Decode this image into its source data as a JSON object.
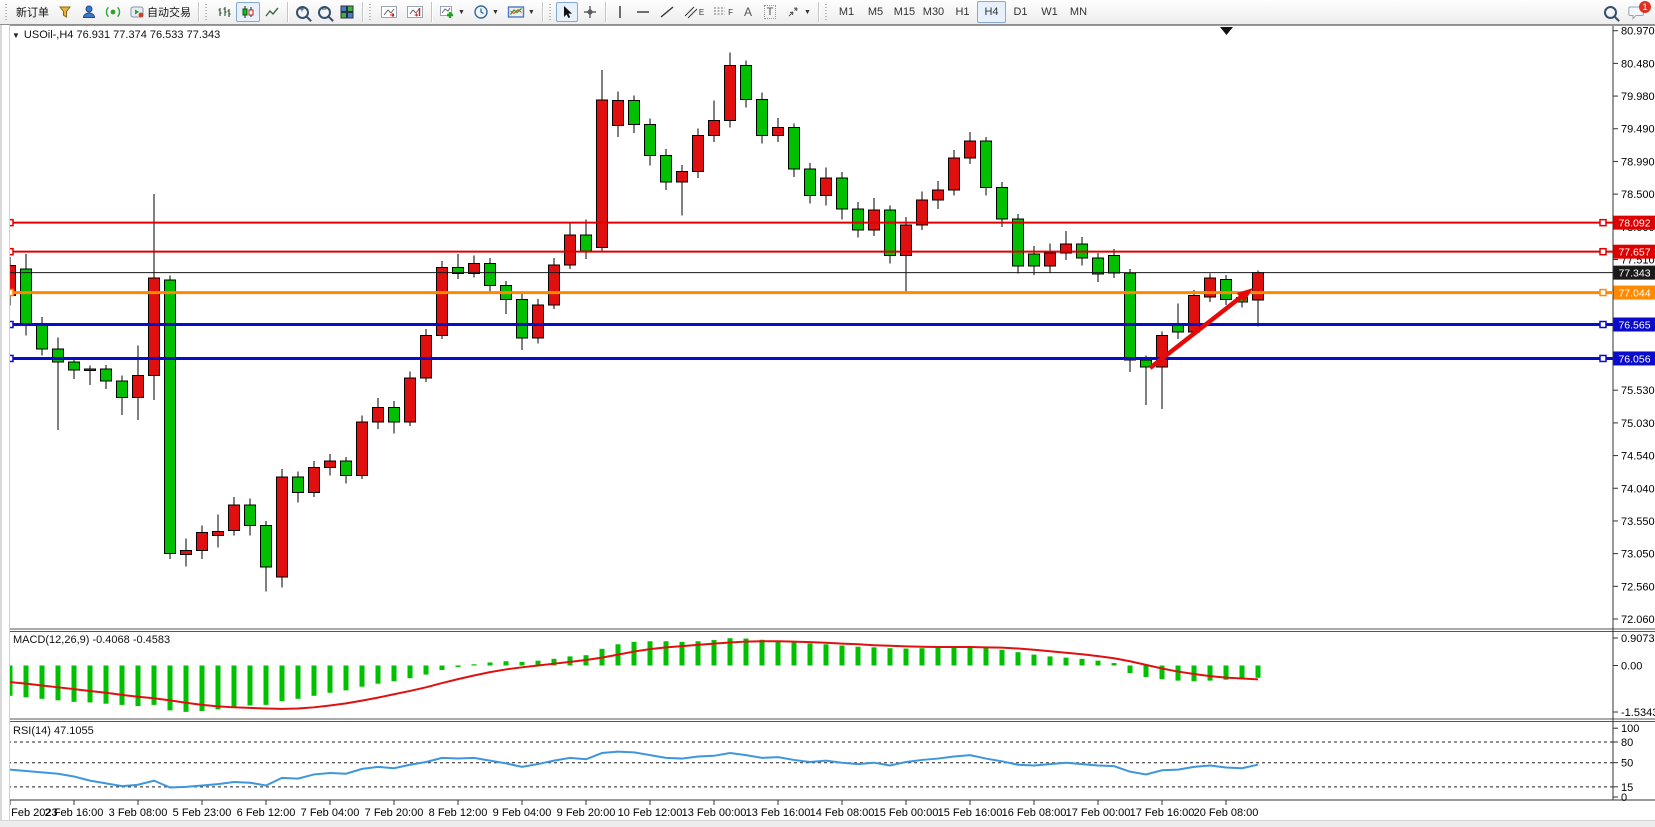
{
  "toolbar": {
    "new_order": "新订单",
    "auto_trading": "自动交易",
    "text_tool": "A",
    "label_tool": "T",
    "channel_letter": "E",
    "fibo_letter": "F",
    "timeframes": [
      "M1",
      "M5",
      "M15",
      "M30",
      "H1",
      "H4",
      "D1",
      "W1",
      "MN"
    ],
    "active_timeframe": "H4",
    "chat_badge": "1",
    "icons": [
      "funnel-icon",
      "user-icon",
      "signal-icon",
      "autotrade-icon",
      "bar-chart-icon",
      "candlestick-icon",
      "line-chart-icon",
      "zoom-in-icon",
      "zoom-out-icon",
      "tile-windows-icon",
      "auto-scroll-icon",
      "chart-shift-icon",
      "add-indicator-icon",
      "clock-icon",
      "template-icon",
      "cursor-icon",
      "crosshair-icon",
      "vertical-line-icon",
      "horizontal-line-icon",
      "trendline-icon",
      "channel-icon",
      "fibonacci-icon",
      "arrows-icon",
      "search-icon",
      "chat-icon"
    ]
  },
  "chart": {
    "title": "USOil-,H4  76.931 77.374 76.533 77.343",
    "symbol": "USOil",
    "period": "H4"
  },
  "chart_data": {
    "type": "candlestick",
    "symbol": "USOil",
    "timeframe": "H4",
    "up_color": "#e01010",
    "down_color": "#00c000",
    "note_color_convention": "red = bullish, green = bearish",
    "last_bar": {
      "open": 76.931,
      "high": 77.374,
      "low": 76.533,
      "close": 77.343
    },
    "price_axis": [
      "80.970",
      "80.480",
      "79.980",
      "79.490",
      "78.990",
      "78.500",
      "78.000",
      "77.510",
      "77.020",
      "76.520",
      "76.030",
      "75.530",
      "75.030",
      "74.540",
      "74.040",
      "73.550",
      "73.050",
      "72.560",
      "72.060"
    ],
    "price_axis_step": 0.49,
    "price_axis_max": 80.97,
    "time_axis": [
      "2 Feb 2023",
      "2 Feb 16:00",
      "3 Feb 08:00",
      "5 Feb 23:00",
      "6 Feb 12:00",
      "7 Feb 04:00",
      "7 Feb 20:00",
      "8 Feb 12:00",
      "9 Feb 04:00",
      "9 Feb 20:00",
      "10 Feb 12:00",
      "13 Feb 00:00",
      "13 Feb 16:00",
      "14 Feb 08:00",
      "15 Feb 00:00",
      "15 Feb 16:00",
      "16 Feb 08:00",
      "17 Feb 00:00",
      "17 Feb 16:00",
      "20 Feb 08:00"
    ],
    "hlines": [
      {
        "price": 78.092,
        "label": "78.092",
        "color": "#dd0000",
        "width": 2,
        "handles": true
      },
      {
        "price": 77.657,
        "label": "77.657",
        "color": "#dd0000",
        "width": 2,
        "handles": true
      },
      {
        "price": 77.343,
        "label": "77.343",
        "color": "#1a1a1a",
        "width": 1,
        "handles": false
      },
      {
        "price": 77.044,
        "label": "77.044",
        "color": "#ff8a00",
        "width": 3,
        "handles": true
      },
      {
        "price": 76.565,
        "label": "76.565",
        "color": "#0b0bcc",
        "width": 3,
        "handles": true
      },
      {
        "price": 76.056,
        "label": "76.056",
        "color": "#0b0bcc",
        "width": 3,
        "handles": true
      }
    ],
    "candles": [
      [
        77.0,
        77.58,
        76.85,
        77.45
      ],
      [
        77.4,
        77.62,
        76.4,
        76.55
      ],
      [
        76.55,
        76.68,
        76.1,
        76.2
      ],
      [
        76.2,
        76.37,
        74.98,
        76.0
      ],
      [
        76.0,
        76.08,
        75.75,
        75.88
      ],
      [
        75.88,
        75.95,
        75.66,
        75.9
      ],
      [
        75.9,
        75.96,
        75.6,
        75.72
      ],
      [
        75.72,
        75.8,
        75.21,
        75.47
      ],
      [
        75.47,
        76.25,
        75.13,
        75.8
      ],
      [
        75.8,
        78.52,
        75.43,
        77.26
      ],
      [
        77.23,
        77.3,
        73.05,
        73.13
      ],
      [
        73.12,
        73.36,
        72.94,
        73.18
      ],
      [
        73.18,
        73.55,
        73.05,
        73.45
      ],
      [
        73.4,
        73.72,
        73.22,
        73.46
      ],
      [
        73.48,
        73.98,
        73.4,
        73.86
      ],
      [
        73.86,
        73.96,
        73.4,
        73.55
      ],
      [
        73.55,
        73.62,
        72.56,
        72.93
      ],
      [
        72.78,
        74.4,
        72.62,
        74.28
      ],
      [
        74.28,
        74.36,
        73.9,
        74.05
      ],
      [
        74.05,
        74.52,
        73.98,
        74.42
      ],
      [
        74.42,
        74.62,
        74.3,
        74.52
      ],
      [
        74.52,
        74.58,
        74.18,
        74.3
      ],
      [
        74.3,
        75.2,
        74.25,
        75.1
      ],
      [
        75.1,
        75.46,
        75.0,
        75.32
      ],
      [
        75.32,
        75.42,
        74.93,
        75.1
      ],
      [
        75.1,
        75.86,
        75.04,
        75.76
      ],
      [
        75.76,
        76.5,
        75.7,
        76.4
      ],
      [
        76.4,
        77.52,
        76.35,
        77.42
      ],
      [
        77.42,
        77.62,
        77.25,
        77.33
      ],
      [
        77.33,
        77.6,
        77.27,
        77.48
      ],
      [
        77.48,
        77.56,
        77.03,
        77.15
      ],
      [
        77.15,
        77.22,
        76.72,
        76.94
      ],
      [
        76.94,
        77.02,
        76.18,
        76.36
      ],
      [
        76.36,
        76.95,
        76.28,
        76.86
      ],
      [
        76.86,
        77.56,
        76.8,
        77.46
      ],
      [
        77.46,
        78.1,
        77.4,
        77.91
      ],
      [
        77.91,
        78.14,
        77.55,
        77.67
      ],
      [
        77.72,
        80.38,
        77.66,
        79.93
      ],
      [
        79.55,
        80.06,
        79.38,
        79.92
      ],
      [
        79.92,
        80.0,
        79.44,
        79.56
      ],
      [
        79.56,
        79.65,
        78.95,
        79.1
      ],
      [
        79.1,
        79.2,
        78.58,
        78.7
      ],
      [
        78.7,
        78.96,
        78.2,
        78.86
      ],
      [
        78.86,
        79.5,
        78.76,
        79.4
      ],
      [
        79.4,
        79.92,
        79.3,
        79.62
      ],
      [
        79.62,
        80.64,
        79.52,
        80.45
      ],
      [
        80.45,
        80.52,
        79.82,
        79.94
      ],
      [
        79.94,
        80.04,
        79.28,
        79.4
      ],
      [
        79.4,
        79.66,
        79.3,
        79.52
      ],
      [
        79.52,
        79.58,
        78.78,
        78.9
      ],
      [
        78.9,
        78.99,
        78.38,
        78.5
      ],
      [
        78.5,
        78.92,
        78.35,
        78.76
      ],
      [
        78.76,
        78.85,
        78.14,
        78.3
      ],
      [
        78.3,
        78.4,
        77.87,
        77.98
      ],
      [
        77.98,
        78.46,
        77.89,
        78.28
      ],
      [
        78.28,
        78.35,
        77.48,
        77.6
      ],
      [
        77.6,
        78.18,
        77.03,
        78.06
      ],
      [
        78.06,
        78.56,
        77.98,
        78.43
      ],
      [
        78.43,
        78.72,
        78.3,
        78.58
      ],
      [
        78.58,
        79.18,
        78.5,
        79.06
      ],
      [
        79.06,
        79.45,
        78.97,
        79.32
      ],
      [
        79.32,
        79.38,
        78.5,
        78.62
      ],
      [
        78.62,
        78.7,
        78.03,
        78.15
      ],
      [
        78.15,
        78.22,
        77.33,
        77.44
      ],
      [
        77.62,
        77.74,
        77.31,
        77.44
      ],
      [
        77.44,
        77.78,
        77.34,
        77.64
      ],
      [
        77.64,
        77.97,
        77.53,
        77.77
      ],
      [
        77.77,
        77.88,
        77.45,
        77.56
      ],
      [
        77.56,
        77.64,
        77.2,
        77.32
      ],
      [
        77.6,
        77.7,
        77.26,
        77.34
      ],
      [
        77.34,
        77.4,
        75.85,
        76.03
      ],
      [
        76.03,
        76.1,
        75.36,
        75.93
      ],
      [
        75.93,
        76.46,
        75.3,
        76.4
      ],
      [
        76.55,
        76.88,
        76.35,
        76.45
      ],
      [
        76.45,
        77.08,
        76.4,
        77.0
      ],
      [
        76.98,
        77.33,
        76.9,
        77.26
      ],
      [
        77.24,
        77.31,
        76.86,
        76.94
      ],
      [
        76.97,
        77.03,
        76.82,
        76.9
      ],
      [
        76.931,
        77.374,
        76.533,
        77.343
      ]
    ],
    "macd": {
      "label": "MACD(12,26,9) -0.4068 -0.4583",
      "main_value": -0.4068,
      "signal_value": -0.4583,
      "scale": {
        "max": "0.9073",
        "zero": "0.00",
        "min": "-1.5343"
      },
      "histogram_color": "#00c000",
      "signal_color": "#e01010",
      "main": [
        -1.0,
        -1.05,
        -1.1,
        -1.15,
        -1.2,
        -1.22,
        -1.26,
        -1.3,
        -1.34,
        -1.3,
        -1.48,
        -1.53,
        -1.5,
        -1.45,
        -1.38,
        -1.32,
        -1.3,
        -1.18,
        -1.1,
        -1.0,
        -0.9,
        -0.82,
        -0.7,
        -0.6,
        -0.52,
        -0.42,
        -0.3,
        -0.15,
        -0.05,
        0.04,
        0.1,
        0.14,
        0.12,
        0.16,
        0.22,
        0.3,
        0.34,
        0.55,
        0.7,
        0.78,
        0.8,
        0.8,
        0.78,
        0.8,
        0.84,
        0.9,
        0.89,
        0.85,
        0.82,
        0.78,
        0.73,
        0.7,
        0.66,
        0.62,
        0.6,
        0.57,
        0.56,
        0.57,
        0.58,
        0.6,
        0.61,
        0.58,
        0.52,
        0.44,
        0.36,
        0.3,
        0.26,
        0.22,
        0.16,
        0.08,
        -0.25,
        -0.38,
        -0.45,
        -0.5,
        -0.52,
        -0.5,
        -0.47,
        -0.44,
        -0.4068
      ],
      "signal": [
        -0.55,
        -0.6,
        -0.66,
        -0.72,
        -0.78,
        -0.84,
        -0.9,
        -0.97,
        -1.03,
        -1.08,
        -1.15,
        -1.23,
        -1.3,
        -1.35,
        -1.38,
        -1.4,
        -1.42,
        -1.43,
        -1.42,
        -1.38,
        -1.32,
        -1.25,
        -1.16,
        -1.06,
        -0.95,
        -0.84,
        -0.72,
        -0.58,
        -0.45,
        -0.33,
        -0.22,
        -0.13,
        -0.06,
        0.0,
        0.06,
        0.12,
        0.18,
        0.26,
        0.36,
        0.46,
        0.54,
        0.6,
        0.64,
        0.68,
        0.72,
        0.76,
        0.79,
        0.8,
        0.8,
        0.79,
        0.77,
        0.75,
        0.72,
        0.7,
        0.67,
        0.65,
        0.63,
        0.62,
        0.61,
        0.61,
        0.61,
        0.6,
        0.59,
        0.56,
        0.52,
        0.47,
        0.42,
        0.37,
        0.31,
        0.24,
        0.14,
        0.02,
        -0.1,
        -0.2,
        -0.28,
        -0.35,
        -0.4,
        -0.43,
        -0.4583
      ]
    },
    "rsi": {
      "label": "RSI(14) 47.1055",
      "value": 47.1055,
      "line_color": "#3e96df",
      "levels": [
        80,
        50,
        15
      ],
      "scale_labels": [
        "100",
        "80",
        "50",
        "15",
        "0"
      ],
      "values": [
        40,
        38,
        36,
        34,
        30,
        24,
        20,
        16,
        18,
        24,
        14,
        15,
        17,
        19,
        22,
        21,
        17,
        28,
        27,
        33,
        35,
        34,
        41,
        44,
        42,
        47,
        51,
        57,
        56,
        57,
        53,
        49,
        44,
        48,
        53,
        57,
        55,
        64,
        66,
        65,
        61,
        57,
        56,
        59,
        60,
        64,
        61,
        57,
        58,
        54,
        51,
        53,
        50,
        48,
        50,
        46,
        51,
        54,
        56,
        59,
        61,
        56,
        52,
        47,
        46,
        48,
        50,
        48,
        46,
        45,
        37,
        33,
        39,
        40,
        44,
        46,
        43,
        42,
        47.1
      ]
    },
    "annotation_arrow": {
      "color": "#e40a0a",
      "direction": "up-right"
    }
  }
}
